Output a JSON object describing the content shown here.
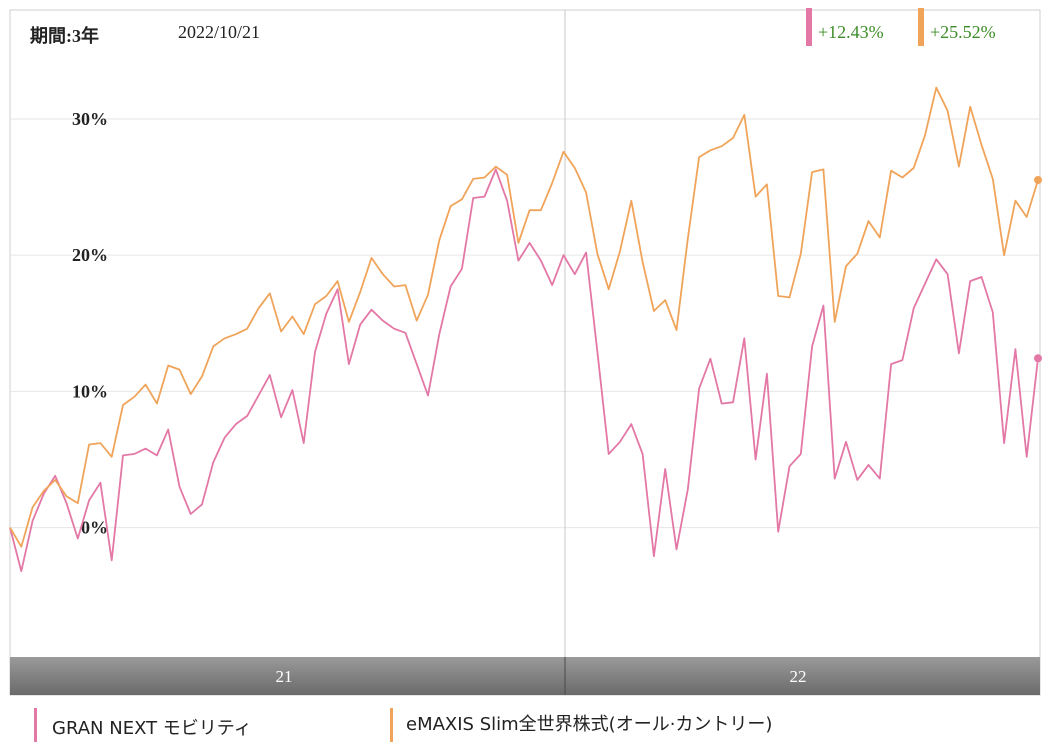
{
  "header": {
    "period": "期間:3年",
    "date": "2022/10/21",
    "returns": [
      {
        "value": "+12.43%",
        "color": "#e377a6"
      },
      {
        "value": "+25.52%",
        "color": "#f0a45a"
      }
    ]
  },
  "legend": [
    {
      "label": "GRAN NEXT モビリティ",
      "color": "#e377a6"
    },
    {
      "label": "eMAXIS Slim全世界株式(オール·カントリー)",
      "color": "#f0a45a"
    }
  ],
  "chart_data": {
    "type": "line",
    "ylim": [
      -9.5,
      38
    ],
    "yticks": [
      {
        "v": 0,
        "label": "0%"
      },
      {
        "v": 10,
        "label": "10%"
      },
      {
        "v": 20,
        "label": "20%"
      },
      {
        "v": 30,
        "label": "30%"
      }
    ],
    "xaxis_labels": [
      "21",
      "22"
    ],
    "grid": true,
    "series": [
      {
        "name": "GRAN NEXT モビリティ",
        "color": "#e377a6",
        "values": [
          0.0,
          -3.2,
          0.5,
          2.5,
          3.8,
          1.8,
          -0.8,
          2.0,
          3.3,
          -2.4,
          5.3,
          5.4,
          5.8,
          5.3,
          7.2,
          3.0,
          1.0,
          1.7,
          4.8,
          6.6,
          7.6,
          8.2,
          9.7,
          11.2,
          8.1,
          10.1,
          6.2,
          12.9,
          15.7,
          17.5,
          12.0,
          14.9,
          16.0,
          15.2,
          14.6,
          14.3,
          12.0,
          9.7,
          14.2,
          17.7,
          19.0,
          24.2,
          24.3,
          26.3,
          24.0,
          19.6,
          20.9,
          19.6,
          17.8,
          20.0,
          18.6,
          20.2,
          12.9,
          5.4,
          6.3,
          7.6,
          5.4,
          -2.1,
          4.3,
          -1.6,
          2.8,
          10.2,
          12.4,
          9.1,
          9.2,
          13.9,
          5.0,
          11.3,
          -0.3,
          4.5,
          5.4,
          13.3,
          16.3,
          3.6,
          6.3,
          3.5,
          4.6,
          3.6,
          12.0,
          12.3,
          16.1,
          17.9,
          19.7,
          18.6,
          12.8,
          18.1,
          18.4,
          15.8,
          6.2,
          13.1,
          5.2,
          12.43
        ]
      },
      {
        "name": "eMAXIS Slim全世界株式(オール·カントリー)",
        "color": "#f0a45a",
        "values": [
          0.0,
          -1.4,
          1.5,
          2.7,
          3.5,
          2.3,
          1.8,
          6.1,
          6.2,
          5.2,
          9.0,
          9.6,
          10.5,
          9.1,
          11.9,
          11.6,
          9.8,
          11.1,
          13.3,
          13.9,
          14.2,
          14.6,
          16.1,
          17.2,
          14.4,
          15.5,
          14.2,
          16.4,
          17.0,
          18.1,
          15.1,
          17.3,
          19.8,
          18.6,
          17.7,
          17.8,
          15.2,
          17.1,
          21.1,
          23.6,
          24.1,
          25.6,
          25.7,
          26.5,
          25.9,
          20.9,
          23.3,
          23.3,
          25.3,
          27.6,
          26.4,
          24.6,
          20.1,
          17.5,
          20.3,
          24.0,
          19.5,
          15.9,
          16.7,
          14.5,
          21.2,
          27.2,
          27.7,
          28.0,
          28.6,
          30.3,
          24.3,
          25.2,
          17.0,
          16.9,
          20.1,
          26.1,
          26.3,
          15.1,
          19.2,
          20.1,
          22.5,
          21.3,
          26.2,
          25.7,
          26.4,
          28.8,
          32.3,
          30.6,
          26.5,
          30.9,
          28.1,
          25.6,
          20.0,
          24.0,
          22.8,
          25.52
        ]
      }
    ]
  }
}
